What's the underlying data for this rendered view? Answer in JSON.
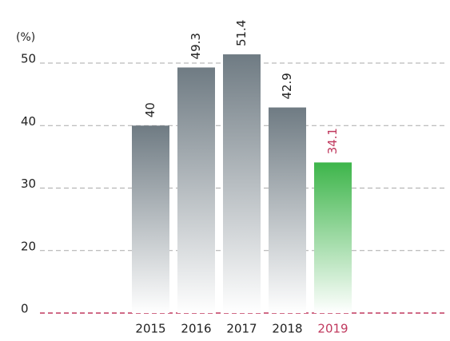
{
  "chart_data": {
    "type": "bar",
    "y_label": "(%)",
    "categories": [
      "2015",
      "2016",
      "2017",
      "2018",
      "2019"
    ],
    "values": [
      40,
      49.3,
      51.4,
      42.9,
      34.1
    ],
    "colors": [
      "#6f7b83",
      "#6f7b83",
      "#6f7b83",
      "#6f7b83",
      "#3db54a"
    ],
    "label_colors": [
      "#222222",
      "#222222",
      "#222222",
      "#222222",
      "#c0395e"
    ],
    "zero_line_color": "#c0395e",
    "ylim": [
      0,
      55
    ],
    "yticks": [
      0,
      20,
      30,
      40,
      50
    ],
    "grid": true
  }
}
